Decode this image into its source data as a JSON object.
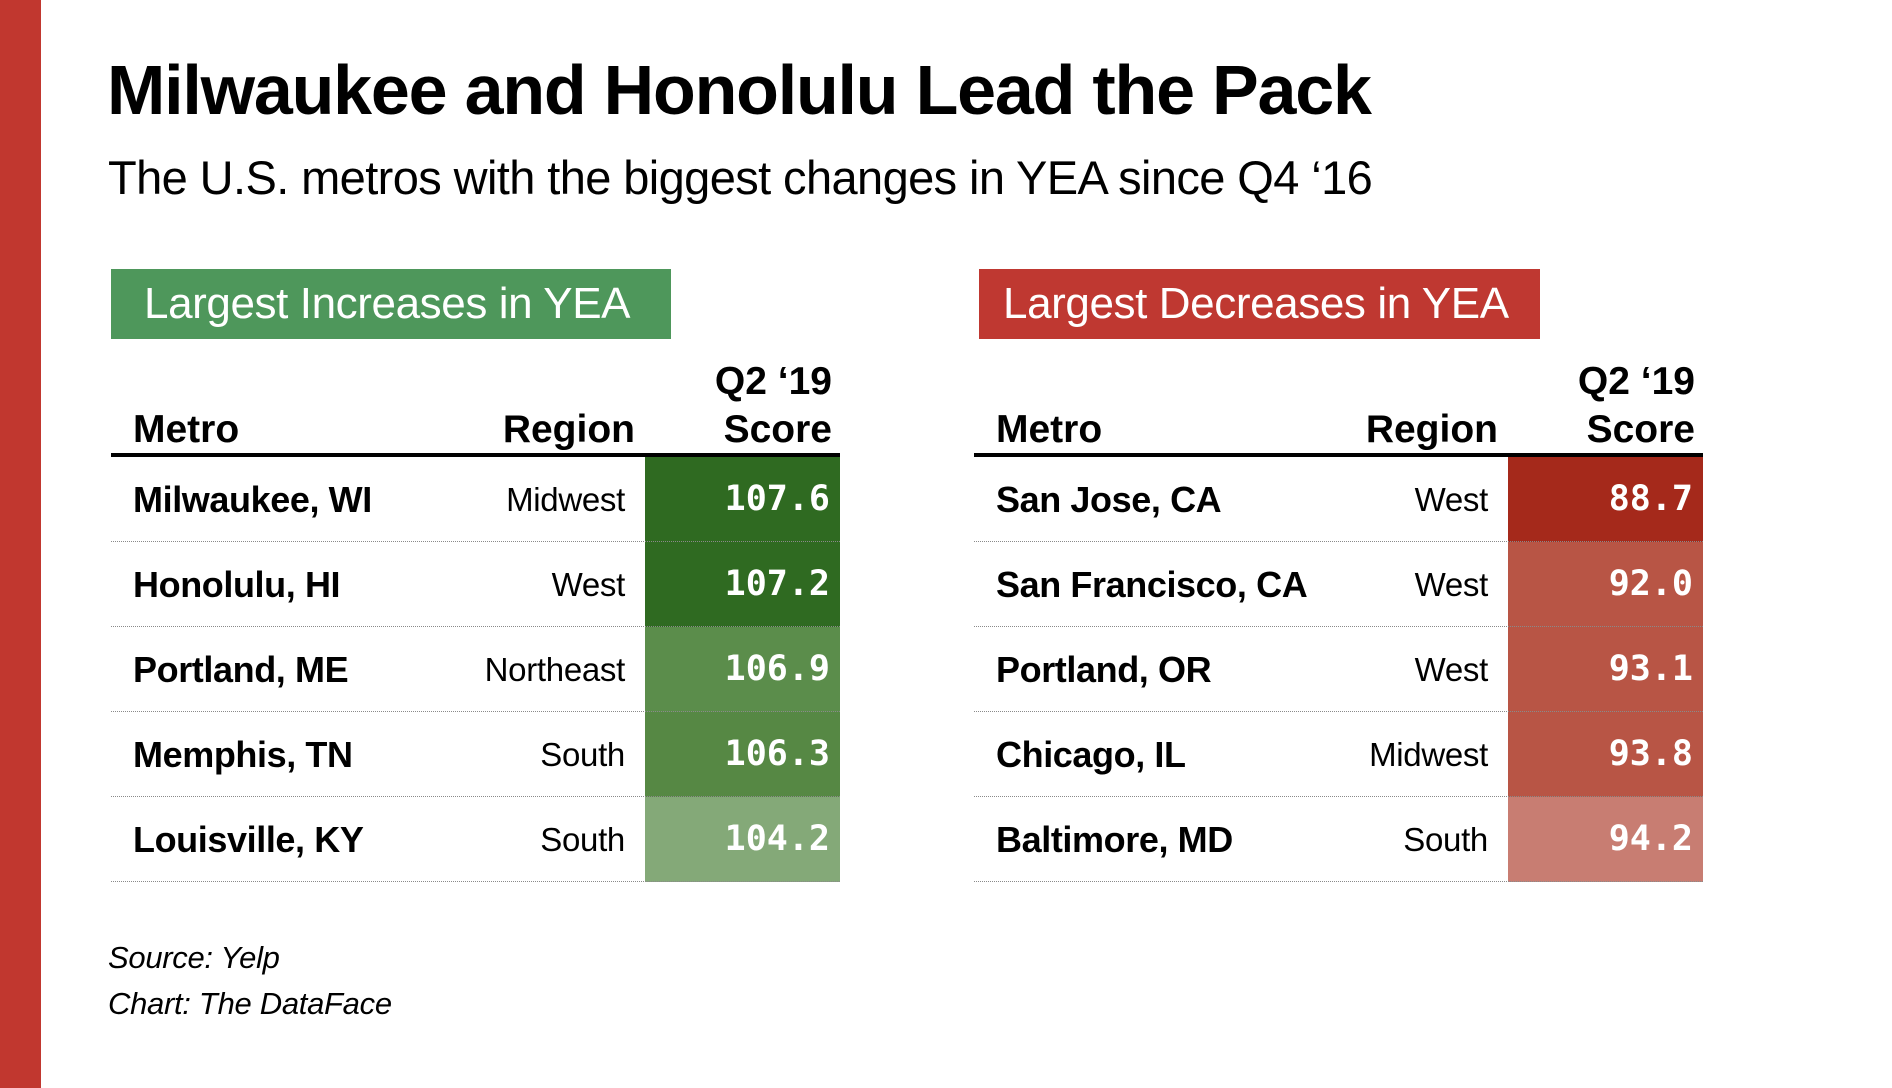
{
  "title": "Milwaukee and Honolulu Lead the Pack",
  "subtitle": "The U.S. metros with the biggest changes in YEA since Q4 ‘16",
  "colors": {
    "side_bar": "#c1372f",
    "increase_badge": "#4e975b",
    "decrease_badge": "#bf3831"
  },
  "chart_data": {
    "type": "table",
    "title": "Milwaukee and Honolulu Lead the Pack",
    "subtitle": "The U.S. metros with the biggest changes in YEA since Q4 ‘16",
    "tables": [
      {
        "name": "Largest Increases in YEA",
        "columns": [
          "Metro",
          "Region",
          "Q2 ‘19 Score"
        ],
        "rows": [
          {
            "metro": "Milwaukee, WI",
            "region": "Midwest",
            "score": "107.6",
            "value": 107.6,
            "color": "#2f6a21"
          },
          {
            "metro": "Honolulu, HI",
            "region": "West",
            "score": "107.2",
            "value": 107.2,
            "color": "#2f6a21"
          },
          {
            "metro": "Portland, ME",
            "region": "Northeast",
            "score": "106.9",
            "value": 106.9,
            "color": "#5b8d4b"
          },
          {
            "metro": "Memphis, TN",
            "region": "South",
            "score": "106.3",
            "value": 106.3,
            "color": "#568844"
          },
          {
            "metro": "Louisville, KY",
            "region": "South",
            "score": "104.2",
            "value": 104.2,
            "color": "#84a978"
          }
        ]
      },
      {
        "name": "Largest Decreases in YEA",
        "columns": [
          "Metro",
          "Region",
          "Q2 ‘19 Score"
        ],
        "rows": [
          {
            "metro": "San Jose, CA",
            "region": "West",
            "score": "88.7",
            "value": 88.7,
            "color": "#a5291b"
          },
          {
            "metro": "San Francisco, CA",
            "region": "West",
            "score": "92.0",
            "value": 92.0,
            "color": "#b85545"
          },
          {
            "metro": "Portland, OR",
            "region": "West",
            "score": "93.1",
            "value": 93.1,
            "color": "#b85545"
          },
          {
            "metro": "Chicago, IL",
            "region": "Midwest",
            "score": "93.8",
            "value": 93.8,
            "color": "#b85545"
          },
          {
            "metro": "Baltimore, MD",
            "region": "South",
            "score": "94.2",
            "value": 94.2,
            "color": "#c87d72"
          }
        ]
      }
    ]
  },
  "increases": {
    "badge": "Largest Increases in YEA",
    "header": {
      "metro": "Metro",
      "region": "Region",
      "score_line1": "Q2 ‘19",
      "score_line2": "Score"
    }
  },
  "decreases": {
    "badge": "Largest Decreases in YEA",
    "header": {
      "metro": "Metro",
      "region": "Region",
      "score_line1": "Q2 ‘19",
      "score_line2": "Score"
    }
  },
  "footer": {
    "source": "Source: Yelp",
    "credit": "Chart: The DataFace"
  }
}
